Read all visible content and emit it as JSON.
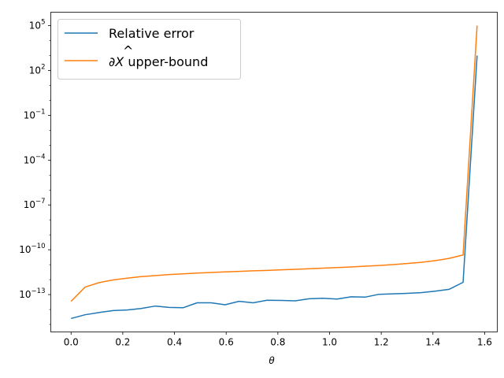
{
  "chart_data": {
    "type": "line",
    "xlabel": "θ",
    "ylabel": "",
    "title": "",
    "xlim": [
      -0.0785,
      1.649
    ],
    "ylim_log10": [
      -15.5,
      5.9
    ],
    "yscale": "log",
    "grid": false,
    "legend_position": "top-left",
    "x_ticks": [
      {
        "value": 0.0,
        "label": "0.0"
      },
      {
        "value": 0.2,
        "label": "0.2"
      },
      {
        "value": 0.4,
        "label": "0.4"
      },
      {
        "value": 0.6,
        "label": "0.6"
      },
      {
        "value": 0.8,
        "label": "0.8"
      },
      {
        "value": 1.0,
        "label": "1.0"
      },
      {
        "value": 1.2,
        "label": "1.2"
      },
      {
        "value": 1.4,
        "label": "1.4"
      },
      {
        "value": 1.6,
        "label": "1.6"
      }
    ],
    "y_ticks": [
      {
        "exp": 5,
        "base": "10",
        "sup": "5"
      },
      {
        "exp": 2,
        "base": "10",
        "sup": "2"
      },
      {
        "exp": -1,
        "base": "10",
        "sup": "−1"
      },
      {
        "exp": -4,
        "base": "10",
        "sup": "−4"
      },
      {
        "exp": -7,
        "base": "10",
        "sup": "−7"
      },
      {
        "exp": -10,
        "base": "10",
        "sup": "−10"
      },
      {
        "exp": -13,
        "base": "10",
        "sup": "−13"
      }
    ],
    "x": [
      0.0,
      0.0541,
      0.1083,
      0.1625,
      0.2166,
      0.2708,
      0.325,
      0.3791,
      0.4333,
      0.4875,
      0.5416,
      0.5958,
      0.65,
      0.7041,
      0.7583,
      0.8125,
      0.8666,
      0.9208,
      0.975,
      1.0291,
      1.0833,
      1.1375,
      1.1916,
      1.2458,
      1.3,
      1.3541,
      1.4083,
      1.4625,
      1.5166,
      1.5708
    ],
    "series": [
      {
        "name": "Relative error",
        "color": "#1f77b4",
        "log10_values": [
          -14.6,
          -14.35,
          -14.2,
          -14.07,
          -14.03,
          -13.93,
          -13.77,
          -13.86,
          -13.88,
          -13.55,
          -13.55,
          -13.68,
          -13.45,
          -13.55,
          -13.38,
          -13.39,
          -13.42,
          -13.28,
          -13.25,
          -13.3,
          -13.15,
          -13.17,
          -12.98,
          -12.95,
          -12.92,
          -12.87,
          -12.77,
          -12.65,
          -12.18,
          3.0
        ]
      },
      {
        "name": "∂X̂ upper-bound",
        "color": "#ff7f0e",
        "log10_values": [
          -13.45,
          -12.5,
          -12.2,
          -12.02,
          -11.9,
          -11.8,
          -11.73,
          -11.66,
          -11.61,
          -11.56,
          -11.52,
          -11.48,
          -11.45,
          -11.41,
          -11.38,
          -11.34,
          -11.31,
          -11.27,
          -11.23,
          -11.19,
          -11.15,
          -11.1,
          -11.05,
          -10.99,
          -10.92,
          -10.84,
          -10.73,
          -10.58,
          -10.35,
          5.0
        ]
      }
    ],
    "legend": [
      {
        "label": "Relative error",
        "color": "#1f77b4"
      },
      {
        "label_prefix": "∂",
        "label_symbol": "X",
        "label_hat": "^",
        "label_suffix": " upper-bound",
        "color": "#ff7f0e"
      }
    ]
  }
}
